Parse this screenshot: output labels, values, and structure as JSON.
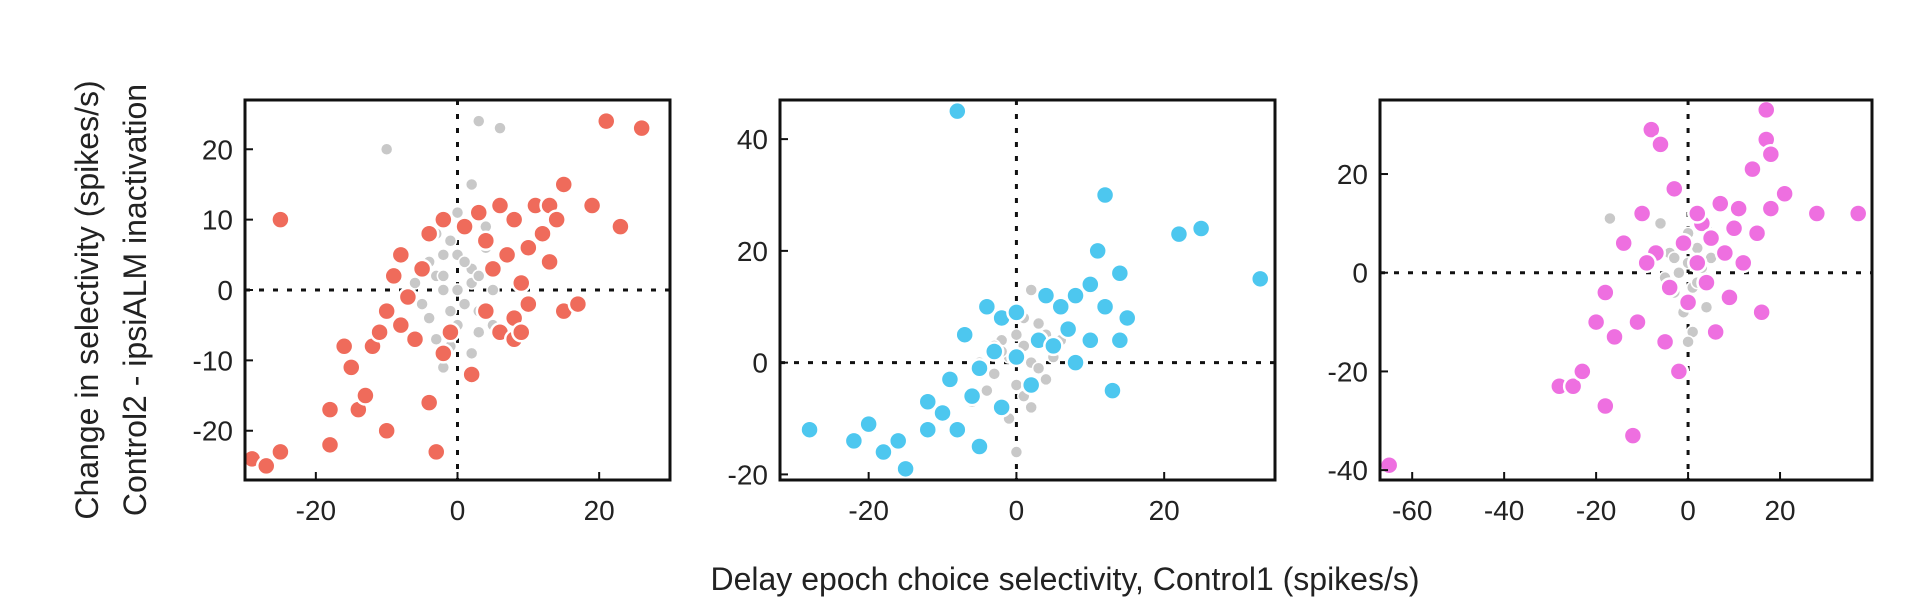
{
  "figure": {
    "ylabel_line1": "Change in selectivity (spikes/s)",
    "ylabel_line2": "Control2 - ipsiALM inactivation",
    "xlabel": "Delay epoch choice selectivity, Control1 (spikes/s)"
  },
  "chart_data": [
    {
      "type": "scatter",
      "title": "",
      "xlabel": "",
      "ylabel": "",
      "xlim": [
        -30,
        30
      ],
      "ylim": [
        -27,
        27
      ],
      "xticks": [
        -20,
        0,
        20
      ],
      "yticks": [
        -20,
        -10,
        0,
        10,
        20
      ],
      "zero_lines": true,
      "grid": false,
      "legend": "none",
      "colors": {
        "significant": "#ef6b5b",
        "nonsignificant": "#c8c8c8"
      },
      "series": [
        {
          "category": "significant",
          "points": [
            [
              -29,
              -24
            ],
            [
              -27,
              -25
            ],
            [
              -25,
              -23
            ],
            [
              -25,
              10
            ],
            [
              -18,
              -22
            ],
            [
              -18,
              -17
            ],
            [
              -16,
              -8
            ],
            [
              -15,
              -11
            ],
            [
              -14,
              -17
            ],
            [
              -13,
              -15
            ],
            [
              -12,
              -8
            ],
            [
              -10,
              -20
            ],
            [
              -11,
              -6
            ],
            [
              -10,
              -3
            ],
            [
              -9,
              2
            ],
            [
              -8,
              -5
            ],
            [
              -8,
              5
            ],
            [
              -7,
              -1
            ],
            [
              -6,
              -7
            ],
            [
              -5,
              3
            ],
            [
              -4,
              8
            ],
            [
              -4,
              -16
            ],
            [
              -3,
              -23
            ],
            [
              -2,
              10
            ],
            [
              -1,
              -6
            ],
            [
              1,
              9
            ],
            [
              2,
              -12
            ],
            [
              3,
              11
            ],
            [
              4,
              7
            ],
            [
              5,
              3
            ],
            [
              6,
              -6
            ],
            [
              7,
              5
            ],
            [
              8,
              10
            ],
            [
              8,
              -4
            ],
            [
              9,
              1
            ],
            [
              10,
              6
            ],
            [
              10,
              -2
            ],
            [
              11,
              12
            ],
            [
              12,
              8
            ],
            [
              13,
              4
            ],
            [
              13,
              12
            ],
            [
              14,
              10
            ],
            [
              15,
              15
            ],
            [
              15,
              -3
            ],
            [
              17,
              -2
            ],
            [
              19,
              12
            ],
            [
              21,
              24
            ],
            [
              23,
              9
            ],
            [
              26,
              23
            ],
            [
              6,
              12
            ],
            [
              8,
              -7
            ],
            [
              -2,
              -9
            ],
            [
              4,
              -3
            ],
            [
              9,
              -6
            ]
          ]
        },
        {
          "category": "nonsignificant",
          "points": [
            [
              -10,
              20
            ],
            [
              3,
              24
            ],
            [
              6,
              23
            ],
            [
              2,
              15
            ],
            [
              -3,
              8
            ],
            [
              0,
              5
            ],
            [
              -2,
              0
            ],
            [
              1,
              -2
            ],
            [
              2,
              3
            ],
            [
              -4,
              -4
            ],
            [
              -1,
              -8
            ],
            [
              3,
              -6
            ],
            [
              4,
              6
            ],
            [
              -2,
              5
            ],
            [
              0,
              0
            ],
            [
              -1,
              -3
            ],
            [
              2,
              1
            ],
            [
              -3,
              2
            ],
            [
              1,
              9
            ],
            [
              -5,
              -2
            ],
            [
              5,
              0
            ],
            [
              -2,
              -11
            ],
            [
              0,
              11
            ],
            [
              -4,
              4
            ],
            [
              3,
              -3
            ],
            [
              -1,
              7
            ],
            [
              4,
              9
            ],
            [
              -3,
              -7
            ],
            [
              2,
              -9
            ],
            [
              1,
              4
            ],
            [
              -2,
              2
            ],
            [
              0,
              -5
            ],
            [
              5,
              -5
            ],
            [
              -6,
              1
            ],
            [
              3,
              2
            ]
          ]
        }
      ]
    },
    {
      "type": "scatter",
      "title": "",
      "xlabel": "",
      "ylabel": "",
      "xlim": [
        -32,
        35
      ],
      "ylim": [
        -21,
        47
      ],
      "xticks": [
        -20,
        0,
        20
      ],
      "yticks": [
        -20,
        0,
        20,
        40
      ],
      "zero_lines": true,
      "grid": false,
      "legend": "none",
      "colors": {
        "significant": "#4dc7ef",
        "nonsignificant": "#c8c8c8"
      },
      "series": [
        {
          "category": "significant",
          "points": [
            [
              -8,
              45
            ],
            [
              -28,
              -12
            ],
            [
              -22,
              -14
            ],
            [
              -20,
              -11
            ],
            [
              -18,
              -16
            ],
            [
              -16,
              -14
            ],
            [
              -15,
              -19
            ],
            [
              -12,
              -12
            ],
            [
              -12,
              -7
            ],
            [
              -10,
              -9
            ],
            [
              -9,
              -3
            ],
            [
              -8,
              -12
            ],
            [
              -7,
              5
            ],
            [
              -6,
              -6
            ],
            [
              -5,
              -15
            ],
            [
              -5,
              -1
            ],
            [
              -4,
              10
            ],
            [
              -3,
              2
            ],
            [
              -2,
              -8
            ],
            [
              -2,
              8
            ],
            [
              0,
              1
            ],
            [
              0,
              9
            ],
            [
              2,
              -4
            ],
            [
              3,
              4
            ],
            [
              4,
              12
            ],
            [
              5,
              3
            ],
            [
              6,
              10
            ],
            [
              7,
              6
            ],
            [
              8,
              12
            ],
            [
              8,
              0
            ],
            [
              10,
              14
            ],
            [
              10,
              4
            ],
            [
              11,
              20
            ],
            [
              12,
              30
            ],
            [
              12,
              10
            ],
            [
              13,
              -5
            ],
            [
              14,
              4
            ],
            [
              14,
              16
            ],
            [
              15,
              8
            ],
            [
              22,
              23
            ],
            [
              25,
              24
            ],
            [
              33,
              15
            ]
          ]
        },
        {
          "category": "nonsignificant",
          "points": [
            [
              -3,
              -2
            ],
            [
              -1,
              1
            ],
            [
              0,
              -4
            ],
            [
              1,
              3
            ],
            [
              2,
              0
            ],
            [
              -2,
              4
            ],
            [
              3,
              -1
            ],
            [
              4,
              5
            ],
            [
              -4,
              -5
            ],
            [
              1,
              8
            ],
            [
              2,
              13
            ],
            [
              -1,
              -10
            ],
            [
              0,
              -16
            ],
            [
              5,
              1
            ],
            [
              -5,
              0
            ],
            [
              6,
              4
            ],
            [
              -6,
              -7
            ],
            [
              1,
              -6
            ],
            [
              3,
              7
            ],
            [
              -2,
              2
            ],
            [
              0,
              5
            ],
            [
              2,
              -8
            ],
            [
              4,
              -3
            ],
            [
              -3,
              3
            ]
          ]
        }
      ]
    },
    {
      "type": "scatter",
      "title": "",
      "xlabel": "",
      "ylabel": "",
      "xlim": [
        -67,
        40
      ],
      "ylim": [
        -42,
        35
      ],
      "xticks": [
        -60,
        -40,
        -20,
        0,
        20
      ],
      "yticks": [
        -40,
        -20,
        0,
        20
      ],
      "zero_lines": true,
      "grid": false,
      "legend": "none",
      "colors": {
        "significant": "#ee6fe0",
        "nonsignificant": "#c8c8c8"
      },
      "series": [
        {
          "category": "significant",
          "points": [
            [
              -65,
              -39
            ],
            [
              -28,
              -23
            ],
            [
              -25,
              -23
            ],
            [
              -23,
              -20
            ],
            [
              -20,
              -10
            ],
            [
              -18,
              -27
            ],
            [
              -18,
              -4
            ],
            [
              -16,
              -13
            ],
            [
              -14,
              6
            ],
            [
              -12,
              -33
            ],
            [
              -11,
              -10
            ],
            [
              -10,
              12
            ],
            [
              -8,
              29
            ],
            [
              -7,
              4
            ],
            [
              -6,
              26
            ],
            [
              -5,
              -14
            ],
            [
              -4,
              -3
            ],
            [
              -3,
              17
            ],
            [
              -2,
              -20
            ],
            [
              -1,
              6
            ],
            [
              0,
              -6
            ],
            [
              2,
              2
            ],
            [
              3,
              10
            ],
            [
              4,
              -2
            ],
            [
              5,
              7
            ],
            [
              6,
              -12
            ],
            [
              7,
              14
            ],
            [
              8,
              4
            ],
            [
              9,
              -5
            ],
            [
              10,
              9
            ],
            [
              11,
              13
            ],
            [
              12,
              2
            ],
            [
              14,
              21
            ],
            [
              15,
              8
            ],
            [
              16,
              -8
            ],
            [
              17,
              33
            ],
            [
              17,
              27
            ],
            [
              18,
              24
            ],
            [
              18,
              13
            ],
            [
              21,
              16
            ],
            [
              28,
              12
            ],
            [
              37,
              12
            ],
            [
              -9,
              2
            ],
            [
              2,
              12
            ]
          ]
        },
        {
          "category": "nonsignificant",
          "points": [
            [
              -17,
              11
            ],
            [
              -6,
              10
            ],
            [
              -4,
              4
            ],
            [
              -2,
              0
            ],
            [
              0,
              2
            ],
            [
              1,
              -3
            ],
            [
              2,
              5
            ],
            [
              -3,
              -4
            ],
            [
              3,
              1
            ],
            [
              -1,
              -8
            ],
            [
              0,
              8
            ],
            [
              4,
              -7
            ],
            [
              -5,
              -1
            ],
            [
              5,
              3
            ],
            [
              1,
              -12
            ],
            [
              0,
              -14
            ],
            [
              -3,
              3
            ],
            [
              2,
              -2
            ],
            [
              -2,
              6
            ],
            [
              4,
              9
            ]
          ]
        }
      ]
    }
  ]
}
